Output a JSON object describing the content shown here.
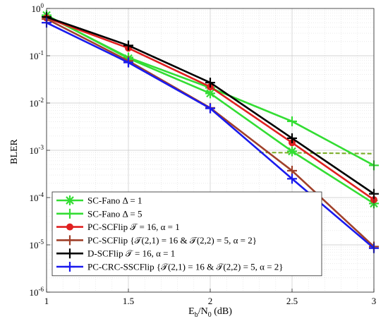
{
  "chart_data": {
    "type": "line",
    "xlabel": "E_b/N_0 (dB)",
    "xlabel_parts": {
      "main1": "E",
      "sub1": "b",
      "mid": "/N",
      "sub2": "0",
      "tail": " (dB)"
    },
    "ylabel": "BLER",
    "xlim": [
      1,
      3
    ],
    "ylim": [
      1e-06,
      1
    ],
    "yscale": "log",
    "grid": "on (major solid, minor dotted)",
    "legend_position": "bottom-left",
    "x_ticks": [
      "1",
      "1.5",
      "2",
      "2.5",
      "3"
    ],
    "y_ticks": [
      {
        "base": "10",
        "exp": "0"
      },
      {
        "base": "10",
        "exp": "-1"
      },
      {
        "base": "10",
        "exp": "-2"
      },
      {
        "base": "10",
        "exp": "-3"
      },
      {
        "base": "10",
        "exp": "-4"
      },
      {
        "base": "10",
        "exp": "-5"
      },
      {
        "base": "10",
        "exp": "-6"
      }
    ],
    "x": [
      1,
      1.5,
      2,
      2.5,
      3
    ],
    "series": [
      {
        "name": "SC-Fano Δ = 1",
        "color": "#33dd33",
        "marker": "asterisk",
        "values": [
          0.72,
          0.088,
          0.016,
          0.00095,
          7.5e-05
        ]
      },
      {
        "name": "SC-Fano Δ = 5",
        "color": "#33dd33",
        "marker": "plus",
        "values": [
          0.7,
          0.092,
          0.021,
          0.0041,
          0.00048
        ]
      },
      {
        "name": "PC-SCFlip 𝒯 = 16, α = 1",
        "color": "#e02020",
        "marker": "circle",
        "values": [
          0.63,
          0.145,
          0.022,
          0.00145,
          9e-05
        ]
      },
      {
        "name": "PC-SCFlip {𝒯(2,1) = 16   &   𝒯(2,2) = 5, α = 2}",
        "color": "#a0402a",
        "marker": "plus",
        "values": [
          0.6,
          0.078,
          0.0079,
          0.00037,
          9.2e-06
        ]
      },
      {
        "name": "D-SCFlip 𝒯 = 16, α = 1",
        "color": "#000000",
        "marker": "plus",
        "values": [
          0.66,
          0.165,
          0.027,
          0.0018,
          0.00012
        ]
      },
      {
        "name": "PC-CRC-SSCFlip {𝒯(2,1) = 16   &   𝒯(2,2) = 5, α = 2}",
        "color": "#1a1aee",
        "marker": "plus",
        "values": [
          0.5,
          0.072,
          0.0077,
          0.00025,
          8.5e-06
        ]
      }
    ],
    "annotations": [
      {
        "type": "dashed-line",
        "color": "#77aa22",
        "x": [
          2.3,
          3.0
        ],
        "y": [
          0.0009,
          0.00085
        ]
      }
    ]
  }
}
